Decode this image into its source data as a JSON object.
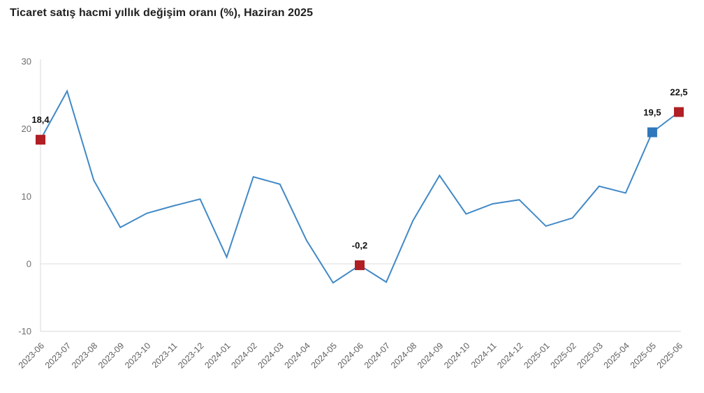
{
  "title": "Ticaret satış hacmi yıllık değişim oranı (%), Haziran 2025",
  "chart_data": {
    "type": "line",
    "title": "Ticaret satış hacmi yıllık değişim oranı (%), Haziran 2025",
    "xlabel": "",
    "ylabel": "",
    "ylim": [
      -10,
      30
    ],
    "grid": "zero-line-only",
    "legend_position": "none",
    "categories": [
      "2023-06",
      "2023-07",
      "2023-08",
      "2023-09",
      "2023-10",
      "2023-11",
      "2023-12",
      "2024-01",
      "2024-02",
      "2024-03",
      "2024-04",
      "2024-05",
      "2024-06",
      "2024-07",
      "2024-08",
      "2024-09",
      "2024-10",
      "2024-11",
      "2024-12",
      "2025-01",
      "2025-02",
      "2025-03",
      "2025-04",
      "2025-05",
      "2025-06"
    ],
    "series": [
      {
        "name": "Ticaret satış hacmi yıllık değişim oranı (%)",
        "values": [
          18.4,
          25.6,
          12.4,
          5.4,
          7.5,
          8.6,
          9.6,
          1.0,
          12.9,
          11.8,
          3.5,
          -2.8,
          -0.2,
          -2.7,
          6.4,
          13.1,
          7.4,
          8.9,
          9.5,
          5.6,
          6.8,
          11.5,
          10.5,
          19.5,
          22.5
        ]
      }
    ],
    "yticks": [
      {
        "value": 30,
        "label": "30"
      },
      {
        "value": 20,
        "label": "20"
      },
      {
        "value": 10,
        "label": "10"
      },
      {
        "value": 0,
        "label": "0"
      },
      {
        "value": -10,
        "label": "-10"
      }
    ],
    "highlighted_points": [
      {
        "category": "2023-06",
        "value": 18.4,
        "label": "18,4",
        "marker": "square",
        "marker_color": "#b01f24"
      },
      {
        "category": "2024-06",
        "value": -0.2,
        "label": "-0,2",
        "marker": "square",
        "marker_color": "#b01f24"
      },
      {
        "category": "2025-05",
        "value": 19.5,
        "label": "19,5",
        "marker": "square",
        "marker_color": "#2e78bb"
      },
      {
        "category": "2025-06",
        "value": 22.5,
        "label": "22,5",
        "marker": "square",
        "marker_color": "#b01f24"
      }
    ],
    "colors": {
      "line": "#4189c7",
      "highlight_red": "#b01f24",
      "highlight_blue": "#2e78bb",
      "axis_line": "#d9d9d9",
      "zero_gridline": "#e9e9e9",
      "tick_text": "#6e6e6e",
      "x_tick_text": "#606060",
      "value_label_text": "#111111",
      "title_text": "#1f1f1f",
      "background": "#ffffff"
    }
  }
}
